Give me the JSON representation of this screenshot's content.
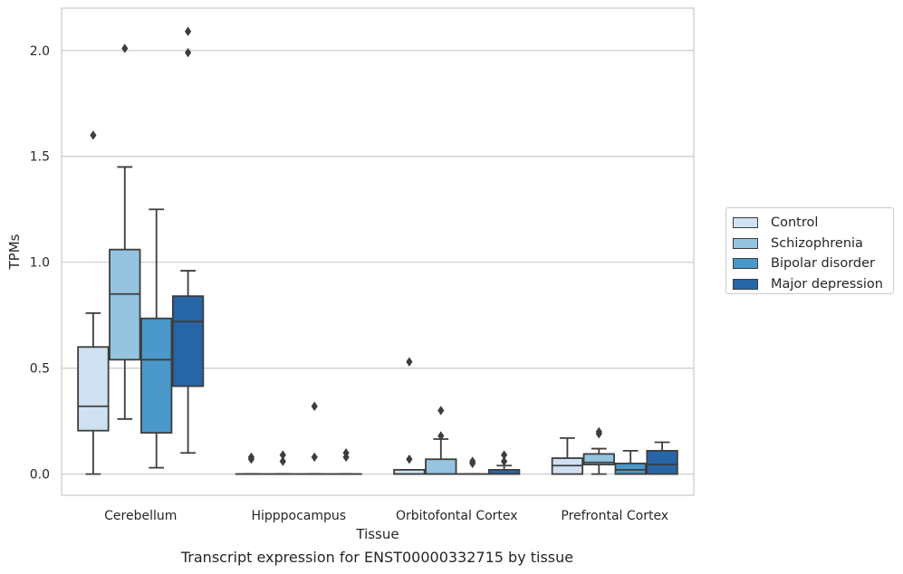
{
  "chart_data": {
    "type": "box",
    "xlabel": "Tissue",
    "ylabel": "TPMs",
    "caption": "Transcript expression for ENST00000332715 by tissue",
    "ylim": [
      -0.1,
      2.2
    ],
    "yticks": [
      0.0,
      0.5,
      1.0,
      1.5,
      2.0
    ],
    "ytick_labels": [
      "0.0",
      "0.5",
      "1.0",
      "1.5",
      "2.0"
    ],
    "grid": "horizontal",
    "legend_position": "right",
    "categories": [
      "Cerebellum",
      "Hipppocampus",
      "Orbitofontal Cortex",
      "Prefrontal Cortex"
    ],
    "series": [
      {
        "name": "Control",
        "color": "#d0e1f2",
        "boxes": [
          {
            "q1": 0.205,
            "median": 0.32,
            "q3": 0.6,
            "whisker_low": 0.0,
            "whisker_high": 0.76,
            "outliers": [
              1.6
            ]
          },
          {
            "q1": 0.0,
            "median": 0.0,
            "q3": 0.0,
            "whisker_low": 0.0,
            "whisker_high": 0.0,
            "outliers": [
              0.07,
              0.08
            ]
          },
          {
            "q1": 0.0,
            "median": 0.0,
            "q3": 0.02,
            "whisker_low": 0.0,
            "whisker_high": 0.02,
            "outliers": [
              0.07,
              0.53
            ]
          },
          {
            "q1": 0.0,
            "median": 0.04,
            "q3": 0.075,
            "whisker_low": 0.0,
            "whisker_high": 0.17,
            "outliers": []
          }
        ]
      },
      {
        "name": "Schizophrenia",
        "color": "#94c4df",
        "boxes": [
          {
            "q1": 0.54,
            "median": 0.85,
            "q3": 1.06,
            "whisker_low": 0.26,
            "whisker_high": 1.45,
            "outliers": [
              2.01
            ]
          },
          {
            "q1": 0.0,
            "median": 0.0,
            "q3": 0.0,
            "whisker_low": 0.0,
            "whisker_high": 0.0,
            "outliers": [
              0.06,
              0.09
            ]
          },
          {
            "q1": 0.0,
            "median": 0.0,
            "q3": 0.07,
            "whisker_low": 0.0,
            "whisker_high": 0.165,
            "outliers": [
              0.18,
              0.3
            ]
          },
          {
            "q1": 0.045,
            "median": 0.055,
            "q3": 0.095,
            "whisker_low": 0.0,
            "whisker_high": 0.12,
            "outliers": [
              0.19,
              0.2
            ]
          }
        ]
      },
      {
        "name": "Bipolar disorder",
        "color": "#4a98c9",
        "boxes": [
          {
            "q1": 0.195,
            "median": 0.54,
            "q3": 0.735,
            "whisker_low": 0.03,
            "whisker_high": 1.25,
            "outliers": []
          },
          {
            "q1": 0.0,
            "median": 0.0,
            "q3": 0.0,
            "whisker_low": 0.0,
            "whisker_high": 0.0,
            "outliers": [
              0.08,
              0.32
            ]
          },
          {
            "q1": 0.0,
            "median": 0.0,
            "q3": 0.0,
            "whisker_low": 0.0,
            "whisker_high": 0.0,
            "outliers": [
              0.05,
              0.06
            ]
          },
          {
            "q1": 0.0,
            "median": 0.02,
            "q3": 0.05,
            "whisker_low": 0.0,
            "whisker_high": 0.11,
            "outliers": []
          }
        ]
      },
      {
        "name": "Major depression",
        "color": "#2666a7",
        "boxes": [
          {
            "q1": 0.415,
            "median": 0.72,
            "q3": 0.84,
            "whisker_low": 0.1,
            "whisker_high": 0.96,
            "outliers": [
              1.99,
              2.09
            ]
          },
          {
            "q1": 0.0,
            "median": 0.0,
            "q3": 0.0,
            "whisker_low": 0.0,
            "whisker_high": 0.0,
            "outliers": [
              0.08,
              0.1
            ]
          },
          {
            "q1": 0.0,
            "median": 0.0,
            "q3": 0.02,
            "whisker_low": 0.0,
            "whisker_high": 0.04,
            "outliers": [
              0.06,
              0.09
            ]
          },
          {
            "q1": 0.0,
            "median": 0.045,
            "q3": 0.11,
            "whisker_low": 0.0,
            "whisker_high": 0.15,
            "outliers": []
          }
        ]
      }
    ]
  }
}
